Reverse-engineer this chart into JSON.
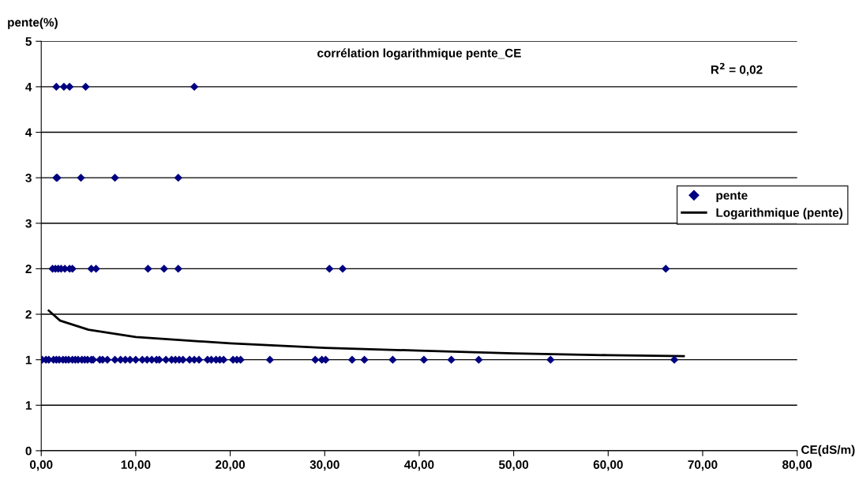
{
  "chart_data": {
    "type": "scatter",
    "title": "corrélation logarithmique pente_CE",
    "xlabel": "CE(dS/m)",
    "ylabel": "pente(%)",
    "annotations": [
      "R$^{2}$ = 0,02"
    ],
    "xlim": [
      0,
      80
    ],
    "xticks": [
      {
        "value": 0,
        "label": "0,00"
      },
      {
        "value": 10,
        "label": "10,00"
      },
      {
        "value": 20,
        "label": "20,00"
      },
      {
        "value": 30,
        "label": "30,00"
      },
      {
        "value": 40,
        "label": "40,00"
      },
      {
        "value": 50,
        "label": "50,00"
      },
      {
        "value": 60,
        "label": "60,00"
      },
      {
        "value": 70,
        "label": "70,00"
      },
      {
        "value": 80,
        "label": "80,00"
      }
    ],
    "ylim": [
      0,
      4.5
    ],
    "yticks": [
      0,
      {
        "value": 0.5,
        "label": "1"
      },
      1,
      {
        "value": 1.5,
        "label": "2"
      },
      2,
      {
        "value": 2.5,
        "label": "3"
      },
      3,
      {
        "value": 3.5,
        "label": "4"
      },
      4,
      {
        "value": 4.5,
        "label": "5"
      }
    ],
    "grid": "y",
    "legend": "right",
    "marker": "diamond",
    "series": [
      {
        "name": "pente",
        "color": "#000080",
        "x": [
          1.6,
          2.4,
          3.0,
          4.7,
          16.2,
          1.6,
          1.7,
          4.2,
          7.8,
          14.5,
          1.2,
          1.5,
          1.8,
          2.1,
          2.5,
          3.0,
          3.3,
          5.3,
          5.8,
          11.3,
          13.0,
          14.5,
          30.5,
          31.9,
          66.1,
          0.1,
          0.5,
          0.8,
          1.3,
          1.6,
          1.9,
          2.3,
          2.6,
          2.9,
          3.3,
          3.6,
          3.9,
          4.3,
          4.6,
          4.9,
          5.3,
          5.5,
          6.2,
          6.5,
          7.0,
          7.8,
          8.4,
          8.9,
          9.4,
          10.0,
          10.7,
          11.2,
          11.7,
          12.2,
          12.5,
          13.2,
          13.8,
          14.2,
          14.6,
          15.0,
          15.7,
          16.2,
          16.7,
          17.6,
          18.0,
          18.5,
          18.9,
          19.3,
          20.3,
          20.7,
          21.1,
          24.2,
          29.0,
          29.7,
          30.1,
          32.9,
          34.2,
          37.2,
          40.5,
          43.4,
          46.3,
          53.9,
          67.0
        ],
        "values": [
          4,
          4,
          4,
          4,
          4,
          3,
          3,
          3,
          3,
          3,
          2,
          2,
          2,
          2,
          2,
          2,
          2,
          2,
          2,
          2,
          2,
          2,
          2,
          2,
          2,
          1,
          1,
          1,
          1,
          1,
          1,
          1,
          1,
          1,
          1,
          1,
          1,
          1,
          1,
          1,
          1,
          1,
          1,
          1,
          1,
          1,
          1,
          1,
          1,
          1,
          1,
          1,
          1,
          1,
          1,
          1,
          1,
          1,
          1,
          1,
          1,
          1,
          1,
          1,
          1,
          1,
          1,
          1,
          1,
          1,
          1,
          1,
          1,
          1,
          1,
          1,
          1,
          1,
          1,
          1,
          1,
          1,
          1
        ]
      },
      {
        "name": "Logarithmique (pente)",
        "type": "line",
        "color": "#000000",
        "marker": "none",
        "line_style": "solid",
        "x": [
          0.8,
          2,
          5,
          10,
          20,
          30,
          40,
          50,
          60,
          68
        ],
        "values": [
          1.54,
          1.43,
          1.33,
          1.25,
          1.18,
          1.13,
          1.1,
          1.07,
          1.05,
          1.04
        ]
      }
    ]
  }
}
